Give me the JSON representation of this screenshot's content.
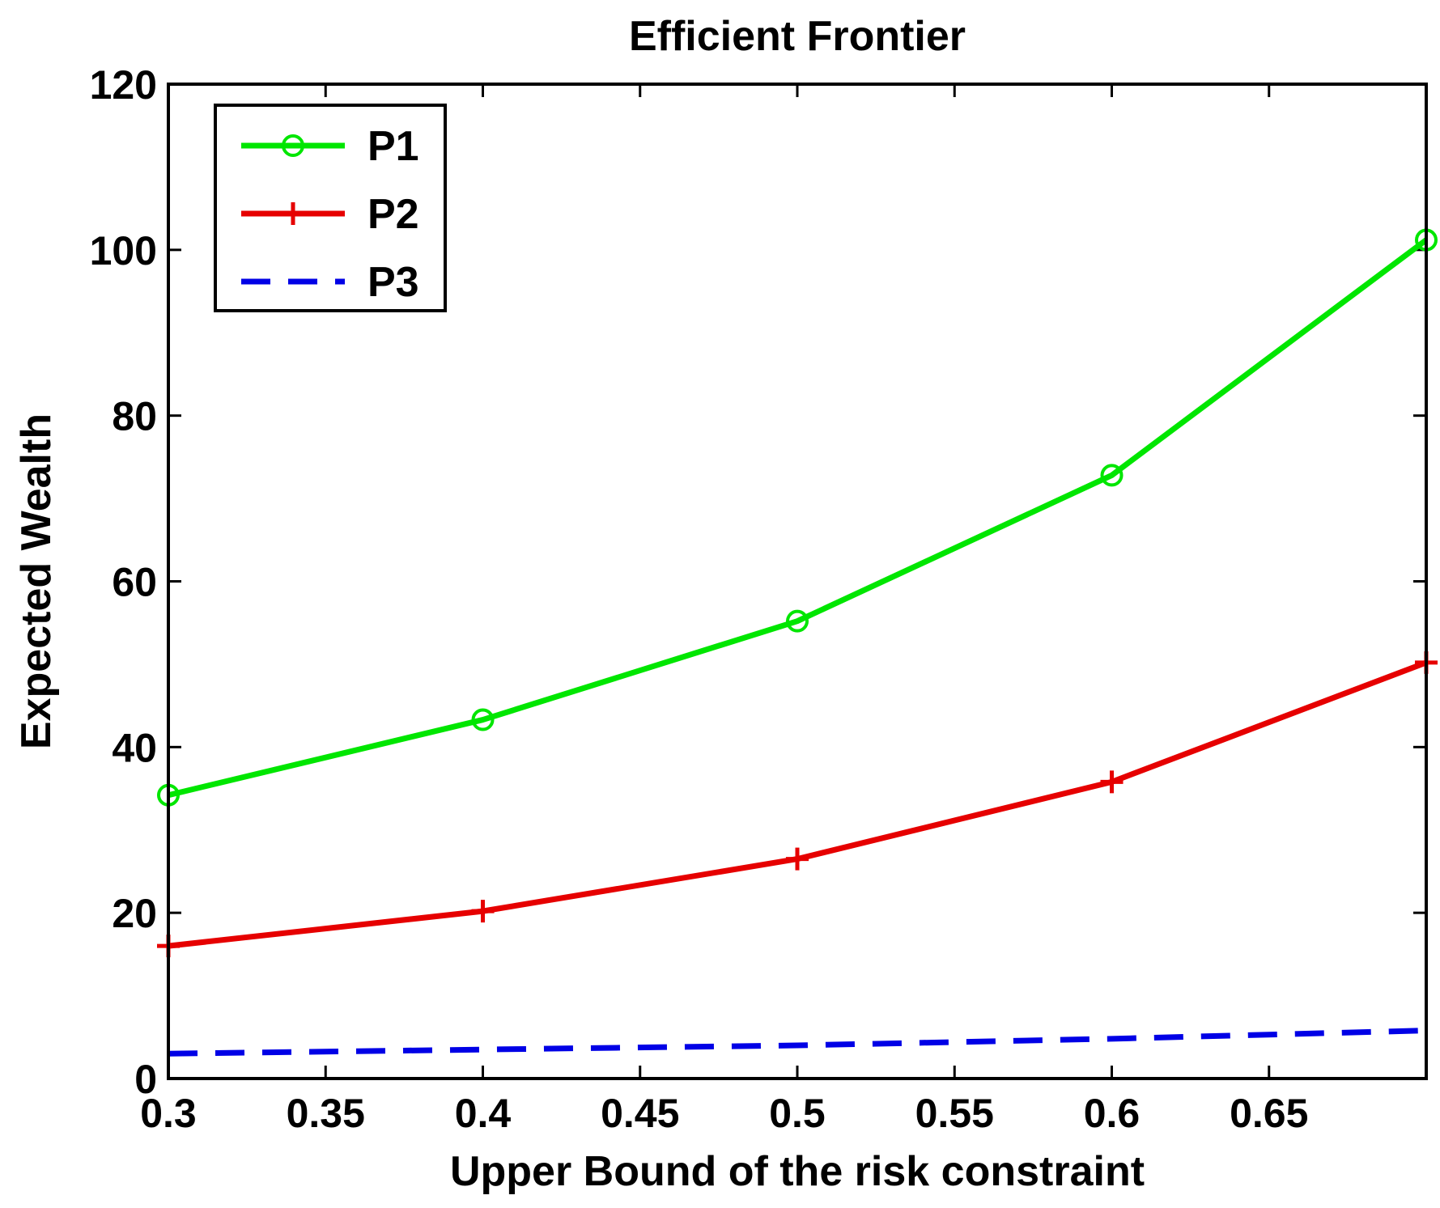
{
  "chart_data": {
    "type": "line",
    "title": "Efficient Frontier",
    "xlabel": "Upper Bound of the risk constraint",
    "ylabel": "Expected Wealth",
    "xlim": [
      0.3,
      0.7
    ],
    "ylim": [
      0,
      120
    ],
    "xticks": [
      0.3,
      0.35,
      0.4,
      0.45,
      0.5,
      0.55,
      0.6,
      0.65
    ],
    "xtick_labels": [
      "0.3",
      "0.35",
      "0.4",
      "0.45",
      "0.5",
      "0.55",
      "0.6",
      "0.65"
    ],
    "yticks": [
      0,
      20,
      40,
      60,
      80,
      100,
      120
    ],
    "ytick_labels": [
      "0",
      "20",
      "40",
      "60",
      "80",
      "100",
      "120"
    ],
    "grid": false,
    "legend_position": "top-left",
    "x": [
      0.3,
      0.4,
      0.5,
      0.6,
      0.7
    ],
    "series": [
      {
        "name": "P1",
        "values": [
          34.2,
          43.3,
          55.2,
          72.8,
          101.2
        ],
        "color": "#00e600",
        "marker": "circle",
        "line": "solid"
      },
      {
        "name": "P2",
        "values": [
          16.0,
          20.2,
          26.5,
          35.8,
          50.2
        ],
        "color": "#e60000",
        "marker": "plus",
        "line": "solid"
      },
      {
        "name": "P3",
        "values": [
          3.0,
          3.5,
          4.0,
          4.8,
          5.8
        ],
        "color": "#0000e6",
        "marker": "none",
        "line": "dashed"
      }
    ]
  }
}
